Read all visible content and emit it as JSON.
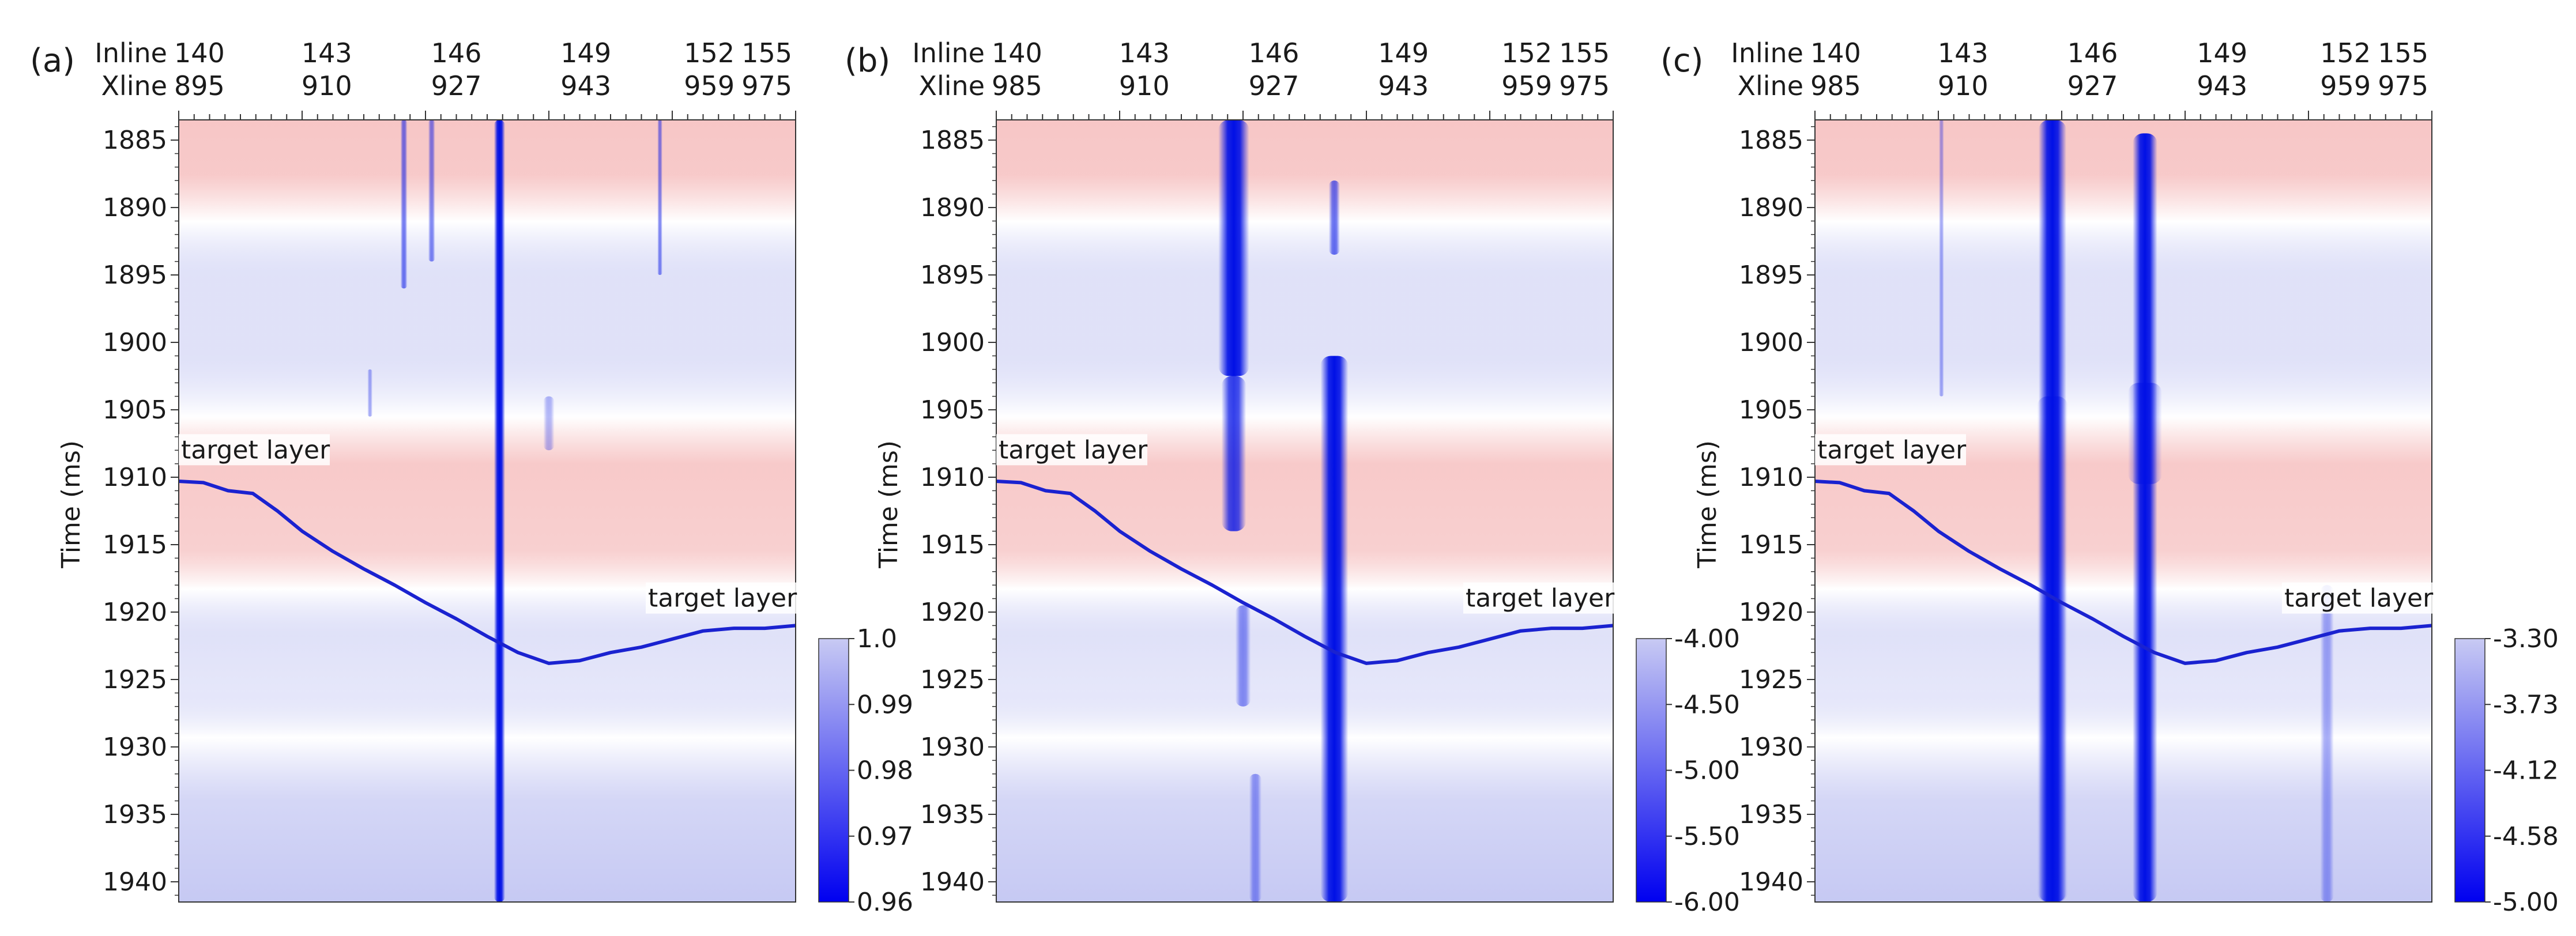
{
  "chart_data": [
    {
      "type": "heatmap",
      "panel_label": "(a)",
      "ylabel": "Time (ms)",
      "ylim": [
        1883.5,
        1941.5
      ],
      "y_ticks": [
        1885,
        1890,
        1895,
        1900,
        1905,
        1910,
        1915,
        1920,
        1925,
        1930,
        1935,
        1940
      ],
      "x_axis_rows": [
        {
          "name": "Inline",
          "values": [
            "140",
            "143",
            "146",
            "149",
            "152",
            "155"
          ]
        },
        {
          "name": "Xline",
          "values": [
            "895",
            "910",
            "927",
            "943",
            "959",
            "975"
          ]
        }
      ],
      "colorbar": {
        "ticks": [
          "1.0",
          "0.99",
          "0.98",
          "0.97",
          "0.96"
        ],
        "min": 0.96,
        "max": 1.0
      },
      "target_layer_labels": [
        "target layer",
        "target layer"
      ],
      "target_layer_horizon": {
        "x": [
          0,
          0.04,
          0.08,
          0.12,
          0.16,
          0.2,
          0.25,
          0.3,
          0.35,
          0.4,
          0.45,
          0.5,
          0.55,
          0.6,
          0.65,
          0.7,
          0.75,
          0.8,
          0.85,
          0.9,
          0.95,
          1.0
        ],
        "time_ms": [
          1910.3,
          1910.4,
          1911.0,
          1911.2,
          1912.5,
          1914.0,
          1915.5,
          1916.8,
          1918.0,
          1919.3,
          1920.5,
          1921.8,
          1923.0,
          1923.8,
          1923.6,
          1923.0,
          1922.6,
          1922.0,
          1921.4,
          1921.2,
          1921.2,
          1921.0
        ]
      },
      "anomalies": [
        {
          "x": 0.52,
          "t0": 1883.5,
          "t1": 1941.5,
          "w": 0.018,
          "strength": 1.0
        },
        {
          "x": 0.365,
          "t0": 1883.5,
          "t1": 1896.0,
          "w": 0.011,
          "strength": 0.55
        },
        {
          "x": 0.41,
          "t0": 1883.5,
          "t1": 1894.0,
          "w": 0.011,
          "strength": 0.5
        },
        {
          "x": 0.78,
          "t0": 1883.5,
          "t1": 1895.0,
          "w": 0.008,
          "strength": 0.5
        },
        {
          "x": 0.6,
          "t0": 1904.0,
          "t1": 1908.0,
          "w": 0.018,
          "strength": 0.3
        },
        {
          "x": 0.31,
          "t0": 1902.0,
          "t1": 1905.5,
          "w": 0.008,
          "strength": 0.35
        }
      ]
    },
    {
      "type": "heatmap",
      "panel_label": "(b)",
      "ylabel": "Time (ms)",
      "ylim": [
        1883.5,
        1941.5
      ],
      "y_ticks": [
        1885,
        1890,
        1895,
        1900,
        1905,
        1910,
        1915,
        1920,
        1925,
        1930,
        1935,
        1940
      ],
      "x_axis_rows": [
        {
          "name": "Inline",
          "values": [
            "140",
            "143",
            "146",
            "149",
            "152",
            "155"
          ]
        },
        {
          "name": "Xline",
          "values": [
            "985",
            "910",
            "927",
            "943",
            "959",
            "975"
          ]
        }
      ],
      "colorbar": {
        "ticks": [
          "-4.00",
          "-4.50",
          "-5.00",
          "-5.50",
          "-6.00"
        ],
        "min": -6.0,
        "max": -4.0
      },
      "target_layer_labels": [
        "target layer",
        "target layer"
      ],
      "target_layer_horizon": {
        "x": [
          0,
          0.04,
          0.08,
          0.12,
          0.16,
          0.2,
          0.25,
          0.3,
          0.35,
          0.4,
          0.45,
          0.5,
          0.55,
          0.6,
          0.65,
          0.7,
          0.75,
          0.8,
          0.85,
          0.9,
          0.95,
          1.0
        ],
        "time_ms": [
          1910.3,
          1910.4,
          1911.0,
          1911.2,
          1912.5,
          1914.0,
          1915.5,
          1916.8,
          1918.0,
          1919.3,
          1920.5,
          1921.8,
          1923.0,
          1923.8,
          1923.6,
          1923.0,
          1922.6,
          1922.0,
          1921.4,
          1921.2,
          1921.2,
          1921.0
        ]
      },
      "anomalies": [
        {
          "x": 0.385,
          "t0": 1883.5,
          "t1": 1902.5,
          "w": 0.05,
          "strength": 1.0
        },
        {
          "x": 0.385,
          "t0": 1902.5,
          "t1": 1914.0,
          "w": 0.04,
          "strength": 0.8
        },
        {
          "x": 0.548,
          "t0": 1901.0,
          "t1": 1941.5,
          "w": 0.045,
          "strength": 1.0
        },
        {
          "x": 0.548,
          "t0": 1888.0,
          "t1": 1893.5,
          "w": 0.018,
          "strength": 0.6
        },
        {
          "x": 0.4,
          "t0": 1919.5,
          "t1": 1927.0,
          "w": 0.025,
          "strength": 0.45
        },
        {
          "x": 0.42,
          "t0": 1932.0,
          "t1": 1941.5,
          "w": 0.02,
          "strength": 0.4
        }
      ]
    },
    {
      "type": "heatmap",
      "panel_label": "(c)",
      "ylabel": "Time (ms)",
      "ylim": [
        1883.5,
        1941.5
      ],
      "y_ticks": [
        1885,
        1890,
        1895,
        1900,
        1905,
        1910,
        1915,
        1920,
        1925,
        1930,
        1935,
        1940
      ],
      "x_axis_rows": [
        {
          "name": "Inline",
          "values": [
            "140",
            "143",
            "146",
            "149",
            "152",
            "155"
          ]
        },
        {
          "name": "Xline",
          "values": [
            "985",
            "910",
            "927",
            "943",
            "959",
            "975"
          ]
        }
      ],
      "colorbar": {
        "ticks": [
          "-3.30",
          "-3.73",
          "-4.12",
          "-4.58",
          "-5.00"
        ],
        "min": -5.0,
        "max": -3.3
      },
      "target_layer_labels": [
        "target layer",
        "target layer"
      ],
      "target_layer_horizon": {
        "x": [
          0,
          0.04,
          0.08,
          0.12,
          0.16,
          0.2,
          0.25,
          0.3,
          0.35,
          0.4,
          0.45,
          0.5,
          0.55,
          0.6,
          0.65,
          0.7,
          0.75,
          0.8,
          0.85,
          0.9,
          0.95,
          1.0
        ],
        "time_ms": [
          1910.3,
          1910.4,
          1911.0,
          1911.2,
          1912.5,
          1914.0,
          1915.5,
          1916.8,
          1918.0,
          1919.3,
          1920.5,
          1921.8,
          1923.0,
          1923.8,
          1923.6,
          1923.0,
          1922.6,
          1922.0,
          1921.4,
          1921.2,
          1921.2,
          1921.0
        ]
      },
      "anomalies": [
        {
          "x": 0.385,
          "t0": 1883.5,
          "t1": 1941.5,
          "w": 0.045,
          "strength": 1.0
        },
        {
          "x": 0.385,
          "t0": 1904.0,
          "t1": 1941.5,
          "w": 0.05,
          "strength": 0.45
        },
        {
          "x": 0.535,
          "t0": 1884.5,
          "t1": 1941.5,
          "w": 0.04,
          "strength": 1.0
        },
        {
          "x": 0.535,
          "t0": 1903.0,
          "t1": 1910.5,
          "w": 0.055,
          "strength": 0.5
        },
        {
          "x": 0.205,
          "t0": 1883.5,
          "t1": 1904.0,
          "w": 0.008,
          "strength": 0.35
        },
        {
          "x": 0.83,
          "t0": 1918.0,
          "t1": 1941.5,
          "w": 0.022,
          "strength": 0.35
        }
      ]
    }
  ],
  "colors": {
    "red": "#f6c0c0",
    "white": "#ffffff",
    "blue_low": "#c6c9f3",
    "anomaly": "#0010e6",
    "horizon": "#1a22d0",
    "cbar_top": "#c8caf3",
    "cbar_bottom": "#0000f0"
  }
}
